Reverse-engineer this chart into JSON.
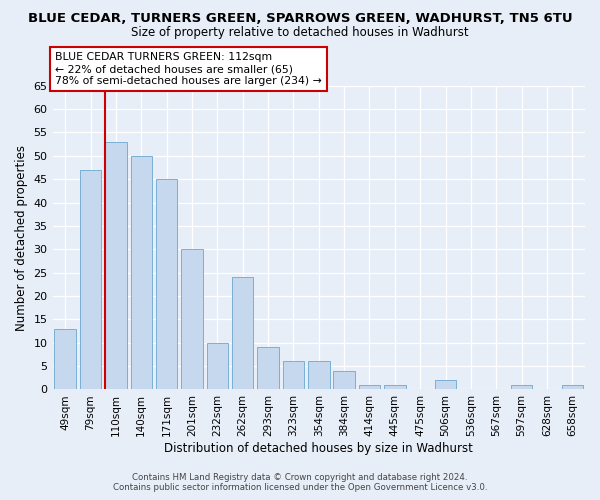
{
  "title": "BLUE CEDAR, TURNERS GREEN, SPARROWS GREEN, WADHURST, TN5 6TU",
  "subtitle": "Size of property relative to detached houses in Wadhurst",
  "xlabel": "Distribution of detached houses by size in Wadhurst",
  "ylabel": "Number of detached properties",
  "categories": [
    "49sqm",
    "79sqm",
    "110sqm",
    "140sqm",
    "171sqm",
    "201sqm",
    "232sqm",
    "262sqm",
    "293sqm",
    "323sqm",
    "354sqm",
    "384sqm",
    "414sqm",
    "445sqm",
    "475sqm",
    "506sqm",
    "536sqm",
    "567sqm",
    "597sqm",
    "628sqm",
    "658sqm"
  ],
  "values": [
    13,
    47,
    53,
    50,
    45,
    30,
    10,
    24,
    9,
    6,
    6,
    4,
    1,
    1,
    0,
    2,
    0,
    0,
    1,
    0,
    1
  ],
  "bar_color": "#c5d8ed",
  "bar_edge_color": "#7aafd4",
  "property_marker_index": 2,
  "property_marker_color": "#cc0000",
  "annotation_line1": "BLUE CEDAR TURNERS GREEN: 112sqm",
  "annotation_line2": "← 22% of detached houses are smaller (65)",
  "annotation_line3": "78% of semi-detached houses are larger (234) →",
  "ylim_max": 65,
  "yticks": [
    0,
    5,
    10,
    15,
    20,
    25,
    30,
    35,
    40,
    45,
    50,
    55,
    60,
    65
  ],
  "bg_color": "#e8eef8",
  "grid_color": "#ffffff",
  "footer_line1": "Contains HM Land Registry data © Crown copyright and database right 2024.",
  "footer_line2": "Contains public sector information licensed under the Open Government Licence v3.0."
}
